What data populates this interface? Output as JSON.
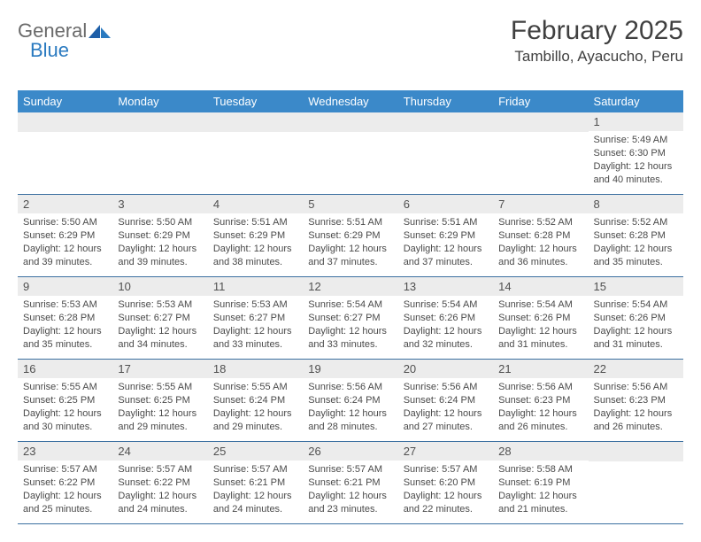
{
  "logo": {
    "word1": "General",
    "word2": "Blue"
  },
  "header": {
    "title": "February 2025",
    "location": "Tambillo, Ayacucho, Peru"
  },
  "calendar": {
    "weekday_header_bg": "#3b89c9",
    "weekday_header_fg": "#ffffff",
    "daynum_band_bg": "#ececec",
    "week_divider_color": "#3b6fa0",
    "weekdays": [
      "Sunday",
      "Monday",
      "Tuesday",
      "Wednesday",
      "Thursday",
      "Friday",
      "Saturday"
    ],
    "weeks": [
      [
        null,
        null,
        null,
        null,
        null,
        null,
        {
          "n": "1",
          "sunrise": "5:49 AM",
          "sunset": "6:30 PM",
          "daylight": "12 hours and 40 minutes."
        }
      ],
      [
        {
          "n": "2",
          "sunrise": "5:50 AM",
          "sunset": "6:29 PM",
          "daylight": "12 hours and 39 minutes."
        },
        {
          "n": "3",
          "sunrise": "5:50 AM",
          "sunset": "6:29 PM",
          "daylight": "12 hours and 39 minutes."
        },
        {
          "n": "4",
          "sunrise": "5:51 AM",
          "sunset": "6:29 PM",
          "daylight": "12 hours and 38 minutes."
        },
        {
          "n": "5",
          "sunrise": "5:51 AM",
          "sunset": "6:29 PM",
          "daylight": "12 hours and 37 minutes."
        },
        {
          "n": "6",
          "sunrise": "5:51 AM",
          "sunset": "6:29 PM",
          "daylight": "12 hours and 37 minutes."
        },
        {
          "n": "7",
          "sunrise": "5:52 AM",
          "sunset": "6:28 PM",
          "daylight": "12 hours and 36 minutes."
        },
        {
          "n": "8",
          "sunrise": "5:52 AM",
          "sunset": "6:28 PM",
          "daylight": "12 hours and 35 minutes."
        }
      ],
      [
        {
          "n": "9",
          "sunrise": "5:53 AM",
          "sunset": "6:28 PM",
          "daylight": "12 hours and 35 minutes."
        },
        {
          "n": "10",
          "sunrise": "5:53 AM",
          "sunset": "6:27 PM",
          "daylight": "12 hours and 34 minutes."
        },
        {
          "n": "11",
          "sunrise": "5:53 AM",
          "sunset": "6:27 PM",
          "daylight": "12 hours and 33 minutes."
        },
        {
          "n": "12",
          "sunrise": "5:54 AM",
          "sunset": "6:27 PM",
          "daylight": "12 hours and 33 minutes."
        },
        {
          "n": "13",
          "sunrise": "5:54 AM",
          "sunset": "6:26 PM",
          "daylight": "12 hours and 32 minutes."
        },
        {
          "n": "14",
          "sunrise": "5:54 AM",
          "sunset": "6:26 PM",
          "daylight": "12 hours and 31 minutes."
        },
        {
          "n": "15",
          "sunrise": "5:54 AM",
          "sunset": "6:26 PM",
          "daylight": "12 hours and 31 minutes."
        }
      ],
      [
        {
          "n": "16",
          "sunrise": "5:55 AM",
          "sunset": "6:25 PM",
          "daylight": "12 hours and 30 minutes."
        },
        {
          "n": "17",
          "sunrise": "5:55 AM",
          "sunset": "6:25 PM",
          "daylight": "12 hours and 29 minutes."
        },
        {
          "n": "18",
          "sunrise": "5:55 AM",
          "sunset": "6:24 PM",
          "daylight": "12 hours and 29 minutes."
        },
        {
          "n": "19",
          "sunrise": "5:56 AM",
          "sunset": "6:24 PM",
          "daylight": "12 hours and 28 minutes."
        },
        {
          "n": "20",
          "sunrise": "5:56 AM",
          "sunset": "6:24 PM",
          "daylight": "12 hours and 27 minutes."
        },
        {
          "n": "21",
          "sunrise": "5:56 AM",
          "sunset": "6:23 PM",
          "daylight": "12 hours and 26 minutes."
        },
        {
          "n": "22",
          "sunrise": "5:56 AM",
          "sunset": "6:23 PM",
          "daylight": "12 hours and 26 minutes."
        }
      ],
      [
        {
          "n": "23",
          "sunrise": "5:57 AM",
          "sunset": "6:22 PM",
          "daylight": "12 hours and 25 minutes."
        },
        {
          "n": "24",
          "sunrise": "5:57 AM",
          "sunset": "6:22 PM",
          "daylight": "12 hours and 24 minutes."
        },
        {
          "n": "25",
          "sunrise": "5:57 AM",
          "sunset": "6:21 PM",
          "daylight": "12 hours and 24 minutes."
        },
        {
          "n": "26",
          "sunrise": "5:57 AM",
          "sunset": "6:21 PM",
          "daylight": "12 hours and 23 minutes."
        },
        {
          "n": "27",
          "sunrise": "5:57 AM",
          "sunset": "6:20 PM",
          "daylight": "12 hours and 22 minutes."
        },
        {
          "n": "28",
          "sunrise": "5:58 AM",
          "sunset": "6:19 PM",
          "daylight": "12 hours and 21 minutes."
        },
        null
      ]
    ]
  },
  "labels": {
    "sunrise": "Sunrise: ",
    "sunset": "Sunset: ",
    "daylight": "Daylight: "
  }
}
